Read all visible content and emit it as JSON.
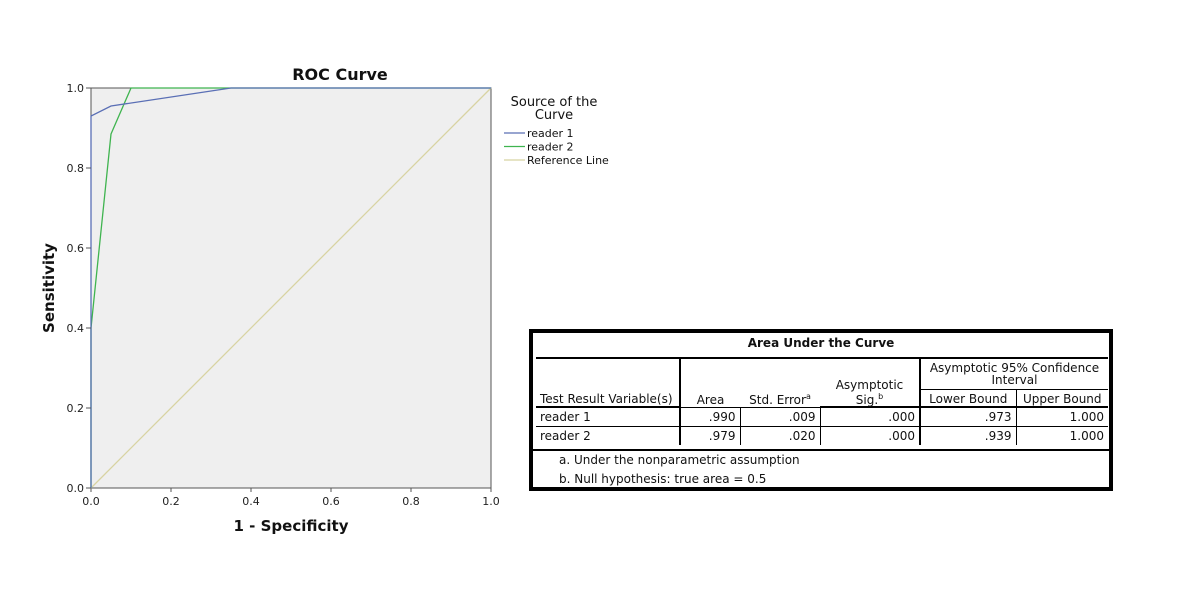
{
  "chart_data": {
    "type": "line",
    "title": "ROC Curve",
    "xlabel": "1 - Specificity",
    "ylabel": "Sensitivity",
    "xlim": [
      0,
      1
    ],
    "ylim": [
      0,
      1
    ],
    "x_ticks": [
      "0.0",
      "0.2",
      "0.4",
      "0.6",
      "0.8",
      "1.0"
    ],
    "y_ticks": [
      "0.0",
      "0.2",
      "0.4",
      "0.6",
      "0.8",
      "1.0"
    ],
    "grid": false,
    "legend_title": "Source of the Curve",
    "legend_position": "right",
    "series": [
      {
        "name": "reader 1",
        "color": "#5a6fb5",
        "x": [
          0,
          0,
          0.05,
          0.35,
          1.0
        ],
        "y": [
          0,
          0.93,
          0.955,
          1.0,
          1.0
        ]
      },
      {
        "name": "reader 2",
        "color": "#3fb44f",
        "x": [
          0,
          0,
          0.05,
          0.1,
          1.0
        ],
        "y": [
          0,
          0.4,
          0.885,
          1.0,
          1.0
        ]
      },
      {
        "name": "Reference Line",
        "color": "#d8d3a2",
        "x": [
          0,
          1
        ],
        "y": [
          0,
          1
        ]
      }
    ]
  },
  "auc_table": {
    "caption": "Area Under the Curve",
    "group_header": "Asymptotic 95% Confidence Interval",
    "headers": {
      "variable": "Test Result Variable(s)",
      "area": "Area",
      "std_error": "Std. Error",
      "std_error_note": "a",
      "sig": "Asymptotic Sig.",
      "sig_note": "b",
      "lower": "Lower Bound",
      "upper": "Upper Bound"
    },
    "rows": [
      {
        "variable": "reader 1",
        "area": ".990",
        "std_error": ".009",
        "sig": ".000",
        "lower": ".973",
        "upper": "1.000"
      },
      {
        "variable": "reader 2",
        "area": ".979",
        "std_error": ".020",
        "sig": ".000",
        "lower": ".939",
        "upper": "1.000"
      }
    ],
    "notes": [
      "a. Under the nonparametric assumption",
      "b. Null hypothesis: true area = 0.5"
    ]
  }
}
